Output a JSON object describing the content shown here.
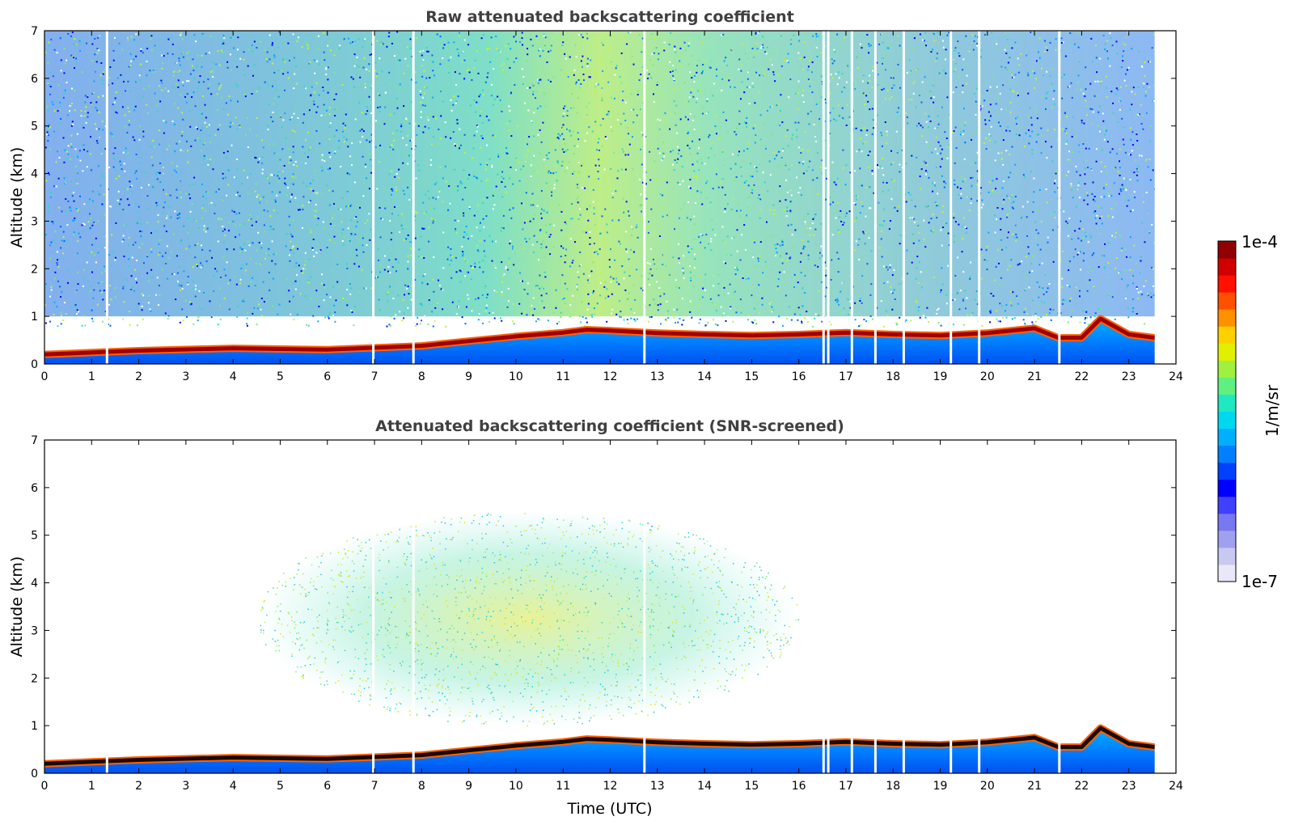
{
  "chart_data": [
    {
      "type": "heatmap",
      "title": "Raw attenuated backscattering coefficient",
      "xlabel": "",
      "ylabel": "Altitude (km)",
      "xlim": [
        0,
        24
      ],
      "ylim": [
        0,
        7
      ],
      "xticks": [
        "0",
        "1",
        "2",
        "3",
        "4",
        "5",
        "6",
        "7",
        "8",
        "9",
        "10",
        "11",
        "12",
        "13",
        "14",
        "15",
        "16",
        "17",
        "18",
        "19",
        "20",
        "21",
        "22",
        "23",
        "24"
      ],
      "yticks": [
        "0",
        "1",
        "2",
        "3",
        "4",
        "5",
        "6",
        "7"
      ],
      "data_end_hour": 23.55,
      "noise_density_above_layer": "high",
      "boundary_layer_top_km": [
        [
          0,
          0.2
        ],
        [
          2,
          0.28
        ],
        [
          4,
          0.33
        ],
        [
          6,
          0.3
        ],
        [
          8,
          0.38
        ],
        [
          9,
          0.48
        ],
        [
          10,
          0.58
        ],
        [
          11,
          0.66
        ],
        [
          11.5,
          0.72
        ],
        [
          12,
          0.7
        ],
        [
          13,
          0.65
        ],
        [
          14,
          0.62
        ],
        [
          15,
          0.6
        ],
        [
          16,
          0.62
        ],
        [
          17,
          0.66
        ],
        [
          18,
          0.62
        ],
        [
          19,
          0.6
        ],
        [
          20,
          0.65
        ],
        [
          21,
          0.75
        ],
        [
          21.5,
          0.55
        ],
        [
          22,
          0.55
        ],
        [
          22.4,
          0.95
        ],
        [
          23,
          0.62
        ],
        [
          23.55,
          0.55
        ]
      ],
      "data_gaps_hours": [
        1.3,
        6.95,
        7.8,
        12.7,
        16.5,
        16.6,
        17.1,
        17.6,
        18.2,
        19.2,
        19.8,
        21.5
      ]
    },
    {
      "type": "heatmap",
      "title": "Attenuated backscattering coefficient (SNR-screened)",
      "xlabel": "Time (UTC)",
      "ylabel": "Altitude (km)",
      "xlim": [
        0,
        24
      ],
      "ylim": [
        0,
        7
      ],
      "xticks": [
        "0",
        "1",
        "2",
        "3",
        "4",
        "5",
        "6",
        "7",
        "8",
        "9",
        "10",
        "11",
        "12",
        "13",
        "14",
        "15",
        "16",
        "17",
        "18",
        "19",
        "20",
        "21",
        "22",
        "23",
        "24"
      ],
      "yticks": [
        "0",
        "1",
        "2",
        "3",
        "4",
        "5",
        "6",
        "7"
      ],
      "data_end_hour": 23.55,
      "noise_density_above_layer": "screened",
      "aerosol_cloud_hours": [
        4.5,
        16
      ],
      "aerosol_cloud_altitude_km": [
        1,
        5.5
      ],
      "boundary_layer_top_km": [
        [
          0,
          0.2
        ],
        [
          2,
          0.28
        ],
        [
          4,
          0.33
        ],
        [
          6,
          0.3
        ],
        [
          8,
          0.38
        ],
        [
          9,
          0.48
        ],
        [
          10,
          0.58
        ],
        [
          11,
          0.66
        ],
        [
          11.5,
          0.72
        ],
        [
          12,
          0.7
        ],
        [
          13,
          0.65
        ],
        [
          14,
          0.62
        ],
        [
          15,
          0.6
        ],
        [
          16,
          0.62
        ],
        [
          17,
          0.66
        ],
        [
          18,
          0.62
        ],
        [
          19,
          0.6
        ],
        [
          20,
          0.65
        ],
        [
          21,
          0.75
        ],
        [
          21.5,
          0.55
        ],
        [
          22,
          0.55
        ],
        [
          22.4,
          0.95
        ],
        [
          23,
          0.62
        ],
        [
          23.55,
          0.55
        ]
      ],
      "data_gaps_hours": [
        1.3,
        6.95,
        7.8,
        12.7,
        16.5,
        16.6,
        17.1,
        17.6,
        18.2,
        19.2,
        19.8,
        21.5
      ]
    }
  ],
  "colorbar": {
    "label": "1/m/sr",
    "max_label": "1e-4",
    "min_label": "1e-7",
    "colors": [
      "#e8e8f8",
      "#c8c8f0",
      "#a0a0f0",
      "#7878f0",
      "#4040ff",
      "#0000ff",
      "#0040ff",
      "#0080ff",
      "#00b0ff",
      "#00d8f0",
      "#20e8c0",
      "#60f080",
      "#a0f040",
      "#e0f000",
      "#ffd000",
      "#ff9000",
      "#ff5000",
      "#ff1000",
      "#d00000",
      "#900000"
    ]
  }
}
